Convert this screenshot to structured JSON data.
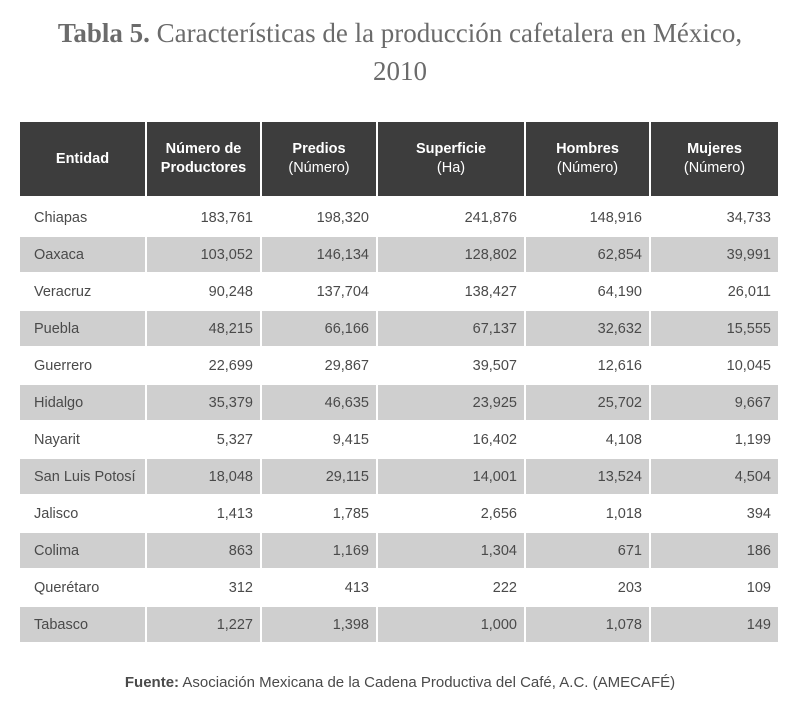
{
  "title": {
    "label": "Tabla 5.",
    "text": "Características de la producción cafetalera en México, 2010"
  },
  "chart_data": {
    "type": "table",
    "columns": [
      {
        "name": "Entidad",
        "unit": ""
      },
      {
        "name": "Número de Productores",
        "unit": ""
      },
      {
        "name": "Predios",
        "unit": "(Número)"
      },
      {
        "name": "Superficie",
        "unit": "(Ha)"
      },
      {
        "name": "Hombres",
        "unit": "(Número)"
      },
      {
        "name": "Mujeres",
        "unit": "(Número)"
      }
    ],
    "rows": [
      [
        "Chiapas",
        "183,761",
        "198,320",
        "241,876",
        "148,916",
        "34,733"
      ],
      [
        "Oaxaca",
        "103,052",
        "146,134",
        "128,802",
        "62,854",
        "39,991"
      ],
      [
        "Veracruz",
        "90,248",
        "137,704",
        "138,427",
        "64,190",
        "26,011"
      ],
      [
        "Puebla",
        "48,215",
        "66,166",
        "67,137",
        "32,632",
        "15,555"
      ],
      [
        "Guerrero",
        "22,699",
        "29,867",
        "39,507",
        "12,616",
        "10,045"
      ],
      [
        "Hidalgo",
        "35,379",
        "46,635",
        "23,925",
        "25,702",
        "9,667"
      ],
      [
        "Nayarit",
        "5,327",
        "9,415",
        "16,402",
        "4,108",
        "1,199"
      ],
      [
        "San Luis Potosí",
        "18,048",
        "29,115",
        "14,001",
        "13,524",
        "4,504"
      ],
      [
        "Jalisco",
        "1,413",
        "1,785",
        "2,656",
        "1,018",
        "394"
      ],
      [
        "Colima",
        "863",
        "1,169",
        "1,304",
        "671",
        "186"
      ],
      [
        "Querétaro",
        "312",
        "413",
        "222",
        "203",
        "109"
      ],
      [
        "Tabasco",
        "1,227",
        "1,398",
        "1,000",
        "1,078",
        "149"
      ]
    ]
  },
  "source": {
    "label": "Fuente:",
    "text": "Asociación Mexicana de la Cadena Productiva del Café, A.C. (AMECAFÉ)"
  },
  "colors": {
    "header_bg": "#3d3d3d",
    "stripe_bg": "#cfcfcf",
    "text": "#4a4a4a"
  }
}
